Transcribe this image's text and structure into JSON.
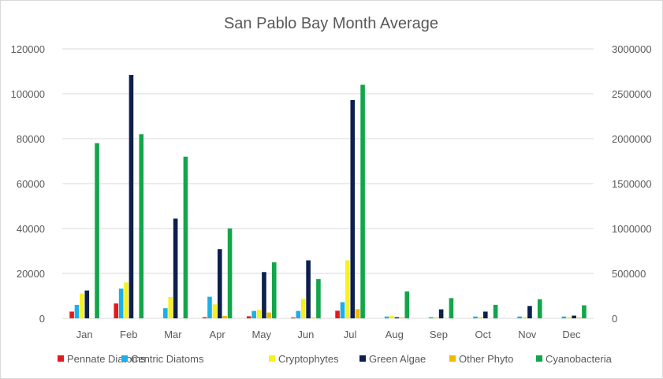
{
  "chart_data": {
    "type": "bar",
    "title": "San Pablo Bay Month Average",
    "categories": [
      "Jan",
      "Feb",
      "Mar",
      "Apr",
      "May",
      "Jun",
      "Jul",
      "Aug",
      "Sep",
      "Oct",
      "Nov",
      "Dec"
    ],
    "y_left": {
      "min": 0,
      "max": 120000,
      "ticks": [
        "0",
        "20000",
        "40000",
        "60000",
        "80000",
        "100000",
        "120000"
      ]
    },
    "y_right": {
      "min": 0,
      "max": 3000000,
      "ticks": [
        "0",
        "500000",
        "1000000",
        "1500000",
        "2000000",
        "2500000",
        "3000000"
      ]
    },
    "grid": true,
    "legend_position": "bottom",
    "series": [
      {
        "name": "Pennate Diatoms",
        "color": "#e31a1c",
        "axis": "left",
        "values": [
          3000,
          6600,
          0,
          500,
          900,
          400,
          3400,
          0,
          0,
          0,
          0,
          0
        ]
      },
      {
        "name": "Centric Diatoms",
        "color": "#1ab0e8",
        "axis": "left",
        "values": [
          6000,
          13200,
          4500,
          9600,
          3300,
          3300,
          7200,
          800,
          500,
          800,
          800,
          800
        ]
      },
      {
        "name": "Cryptophytes",
        "color": "#f7f022",
        "axis": "left",
        "values": [
          11000,
          16000,
          9500,
          6200,
          3800,
          8700,
          25800,
          1200,
          600,
          600,
          600,
          600
        ]
      },
      {
        "name": "Green Algae",
        "color": "#0d1f4f",
        "axis": "right",
        "values": [
          310000,
          2710000,
          1110000,
          770000,
          515000,
          645000,
          2430000,
          12500,
          100000,
          75000,
          137500,
          30000
        ]
      },
      {
        "name": "Other Phyto",
        "color": "#f5b800",
        "axis": "left",
        "values": [
          0,
          0,
          0,
          1100,
          2600,
          300,
          4100,
          300,
          0,
          0,
          0,
          400
        ]
      },
      {
        "name": "Cyanobacteria",
        "color": "#12a64a",
        "axis": "left",
        "values": [
          78000,
          82000,
          72000,
          40000,
          25000,
          17500,
          104000,
          12000,
          9000,
          6000,
          8500,
          5800
        ]
      }
    ]
  }
}
